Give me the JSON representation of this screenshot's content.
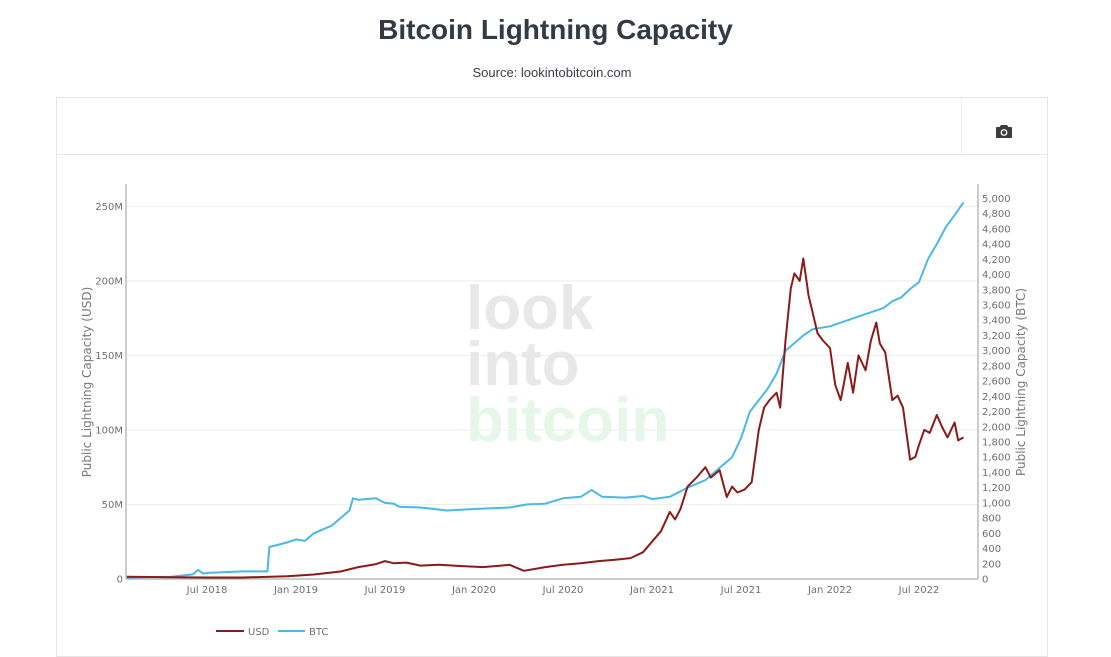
{
  "header": {
    "title": "Bitcoin Lightning Capacity",
    "subtitle": "Source: lookintobitcoin.com"
  },
  "toolbar": {
    "camera_icon": "camera-icon",
    "camera_label": "Download plot as a png"
  },
  "watermark": {
    "lines": [
      "look",
      "into",
      "bitcoin"
    ],
    "colors": [
      "#e8e8e8",
      "#e8e8e8",
      "#e6f7ea"
    ]
  },
  "chart_data": {
    "type": "line",
    "title": "Bitcoin Lightning Capacity",
    "subtitle": "Source: lookintobitcoin.com",
    "xlabel": "",
    "ylabel": "Public Lightning Capacity (USD)",
    "y2label": "Public Lightning Capacity (BTC)",
    "x_unit": "decimal year",
    "xlim": [
      2018.05,
      2022.78
    ],
    "ylim": [
      0,
      265000000
    ],
    "y2lim": [
      0,
      5190
    ],
    "x_ticks": [
      {
        "value": 2018.5,
        "label": "Jul 2018"
      },
      {
        "value": 2019.0,
        "label": "Jan 2019"
      },
      {
        "value": 2019.5,
        "label": "Jul 2019"
      },
      {
        "value": 2020.0,
        "label": "Jan 2020"
      },
      {
        "value": 2020.5,
        "label": "Jul 2020"
      },
      {
        "value": 2021.0,
        "label": "Jan 2021"
      },
      {
        "value": 2021.5,
        "label": "Jul 2021"
      },
      {
        "value": 2022.0,
        "label": "Jan 2022"
      },
      {
        "value": 2022.5,
        "label": "Jul 2022"
      }
    ],
    "y_ticks": [
      {
        "value": 0,
        "label": "0"
      },
      {
        "value": 50000000,
        "label": "50M"
      },
      {
        "value": 100000000,
        "label": "100M"
      },
      {
        "value": 150000000,
        "label": "150M"
      },
      {
        "value": 200000000,
        "label": "200M"
      },
      {
        "value": 250000000,
        "label": "250M"
      }
    ],
    "y2_ticks": [
      {
        "value": 0,
        "label": "0"
      },
      {
        "value": 200,
        "label": "200"
      },
      {
        "value": 400,
        "label": "400"
      },
      {
        "value": 600,
        "label": "600"
      },
      {
        "value": 800,
        "label": "800"
      },
      {
        "value": 1000,
        "label": "1,000"
      },
      {
        "value": 1200,
        "label": "1,200"
      },
      {
        "value": 1400,
        "label": "1,400"
      },
      {
        "value": 1600,
        "label": "1,600"
      },
      {
        "value": 1800,
        "label": "1,800"
      },
      {
        "value": 2000,
        "label": "2,000"
      },
      {
        "value": 2200,
        "label": "2,200"
      },
      {
        "value": 2400,
        "label": "2,400"
      },
      {
        "value": 2600,
        "label": "2,600"
      },
      {
        "value": 2800,
        "label": "2,800"
      },
      {
        "value": 3000,
        "label": "3,000"
      },
      {
        "value": 3200,
        "label": "3,200"
      },
      {
        "value": 3400,
        "label": "3,400"
      },
      {
        "value": 3600,
        "label": "3,600"
      },
      {
        "value": 3800,
        "label": "3,800"
      },
      {
        "value": 4000,
        "label": "4,000"
      },
      {
        "value": 4200,
        "label": "4,200"
      },
      {
        "value": 4400,
        "label": "4,400"
      },
      {
        "value": 4600,
        "label": "4,600"
      },
      {
        "value": 4800,
        "label": "4,800"
      },
      {
        "value": 5000,
        "label": "5,000"
      }
    ],
    "grid": true,
    "legend": {
      "position": "bottom-left",
      "orientation": "horizontal"
    },
    "series": [
      {
        "name": "USD",
        "axis": "left",
        "color": "#8b1a1a",
        "x": [
          2018.05,
          2018.3,
          2018.5,
          2018.7,
          2018.95,
          2019.1,
          2019.25,
          2019.35,
          2019.45,
          2019.5,
          2019.55,
          2019.62,
          2019.7,
          2019.8,
          2019.95,
          2020.05,
          2020.15,
          2020.2,
          2020.28,
          2020.4,
          2020.5,
          2020.6,
          2020.7,
          2020.8,
          2020.88,
          2020.95,
          2021.0,
          2021.05,
          2021.1,
          2021.13,
          2021.16,
          2021.2,
          2021.25,
          2021.3,
          2021.33,
          2021.38,
          2021.42,
          2021.45,
          2021.48,
          2021.52,
          2021.56,
          2021.6,
          2021.63,
          2021.66,
          2021.7,
          2021.72,
          2021.75,
          2021.78,
          2021.8,
          2021.83,
          2021.85,
          2021.88,
          2021.9,
          2021.93,
          2021.96,
          2022.0,
          2022.03,
          2022.06,
          2022.1,
          2022.13,
          2022.16,
          2022.2,
          2022.23,
          2022.26,
          2022.28,
          2022.31,
          2022.35,
          2022.38,
          2022.41,
          2022.45,
          2022.48,
          2022.5,
          2022.53,
          2022.56,
          2022.6,
          2022.63,
          2022.66,
          2022.7,
          2022.72,
          2022.75
        ],
        "values": [
          1500000,
          1200000,
          1000000,
          1000000,
          1800000,
          3000000,
          5000000,
          8000000,
          10000000,
          12000000,
          10500000,
          11000000,
          9000000,
          9500000,
          8500000,
          8000000,
          9000000,
          9500000,
          5500000,
          8000000,
          9500000,
          10500000,
          12000000,
          13000000,
          14000000,
          18000000,
          25000000,
          32000000,
          45000000,
          40000000,
          47000000,
          62000000,
          68000000,
          75000000,
          68000000,
          73000000,
          55000000,
          62000000,
          58000000,
          60000000,
          65000000,
          100000000,
          115000000,
          120000000,
          125000000,
          115000000,
          160000000,
          195000000,
          205000000,
          200000000,
          215000000,
          190000000,
          180000000,
          165000000,
          160000000,
          155000000,
          130000000,
          120000000,
          145000000,
          125000000,
          150000000,
          140000000,
          160000000,
          172000000,
          158000000,
          152000000,
          120000000,
          123000000,
          115000000,
          80000000,
          82000000,
          90000000,
          100000000,
          98000000,
          110000000,
          102000000,
          95000000,
          105000000,
          93000000,
          95000000
        ]
      },
      {
        "name": "BTC",
        "axis": "right",
        "color": "#4ab8e8",
        "x": [
          2018.05,
          2018.3,
          2018.42,
          2018.45,
          2018.48,
          2018.5,
          2018.7,
          2018.84,
          2018.85,
          2018.95,
          2019.0,
          2019.05,
          2019.1,
          2019.2,
          2019.3,
          2019.32,
          2019.35,
          2019.45,
          2019.5,
          2019.55,
          2019.58,
          2019.7,
          2019.85,
          2020.0,
          2020.2,
          2020.3,
          2020.4,
          2020.5,
          2020.6,
          2020.66,
          2020.72,
          2020.85,
          2020.95,
          2021.0,
          2021.1,
          2021.2,
          2021.3,
          2021.4,
          2021.45,
          2021.5,
          2021.55,
          2021.6,
          2021.65,
          2021.7,
          2021.75,
          2021.8,
          2021.85,
          2021.9,
          2021.95,
          2022.0,
          2022.1,
          2022.2,
          2022.3,
          2022.35,
          2022.4,
          2022.45,
          2022.5,
          2022.55,
          2022.6,
          2022.65,
          2022.7,
          2022.75
        ],
        "values": [
          20,
          30,
          60,
          120,
          70,
          80,
          100,
          100,
          420,
          480,
          520,
          500,
          600,
          700,
          900,
          1060,
          1040,
          1060,
          1000,
          990,
          950,
          940,
          900,
          920,
          940,
          980,
          990,
          1060,
          1080,
          1170,
          1080,
          1070,
          1090,
          1050,
          1080,
          1200,
          1300,
          1500,
          1600,
          1850,
          2200,
          2350,
          2500,
          2700,
          3000,
          3100,
          3200,
          3280,
          3300,
          3320,
          3400,
          3480,
          3560,
          3650,
          3700,
          3810,
          3900,
          4200,
          4400,
          4620,
          4780,
          4950
        ]
      }
    ]
  }
}
